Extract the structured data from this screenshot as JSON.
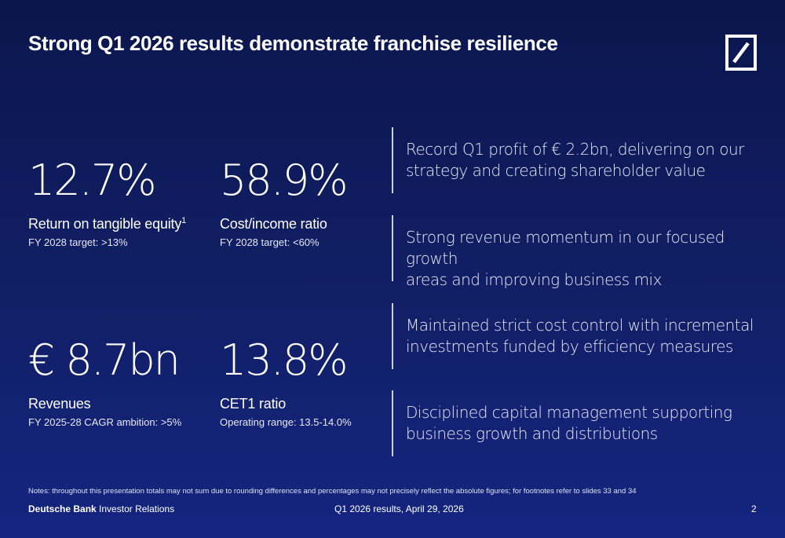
{
  "title": "Strong Q1 2026 results demonstrate franchise resilience",
  "logo": {
    "icon": "deutsche-bank-logo-icon",
    "color": "#ffffff"
  },
  "kpis": [
    {
      "value": "12.7%",
      "label": "Return on tangible equity",
      "footnote": "1",
      "sub": "FY 2028 target: >13%"
    },
    {
      "value": "58.9%",
      "label": "Cost/income ratio",
      "footnote": "",
      "sub": "FY 2028 target: <60%"
    },
    {
      "value": "€ 8.7bn",
      "label": "Revenues",
      "footnote": "",
      "sub": "FY 2025-28 CAGR ambition: >5%"
    },
    {
      "value": "13.8%",
      "label": "CET1 ratio",
      "footnote": "",
      "sub": "Operating range: 13.5-14.0%"
    }
  ],
  "highlights": [
    {
      "line1": "Record Q1 profit of € 2.2bn, delivering on our",
      "line2": "strategy and creating shareholder value"
    },
    {
      "line1": "Strong revenue momentum in our focused growth",
      "line2": "areas and improving business mix"
    },
    {
      "line1": "Maintained strict cost control with incremental",
      "line2": "investments funded by efficiency measures"
    },
    {
      "line1": "Disciplined capital management supporting",
      "line2": "business growth and distributions"
    }
  ],
  "notes": "Notes: throughout this presentation totals may not sum due to rounding differences and percentages may not precisely reflect the absolute figures; for footnotes refer to slides 33 and 34",
  "footer": {
    "brand": "Deutsche Bank",
    "brand_suffix": "Investor Relations",
    "center": "Q1 2026 results, April 29, 2026",
    "page": "2"
  },
  "colors": {
    "background_top": "#0b164d",
    "background_bottom": "#152580",
    "divider": "#c9cfe6"
  }
}
